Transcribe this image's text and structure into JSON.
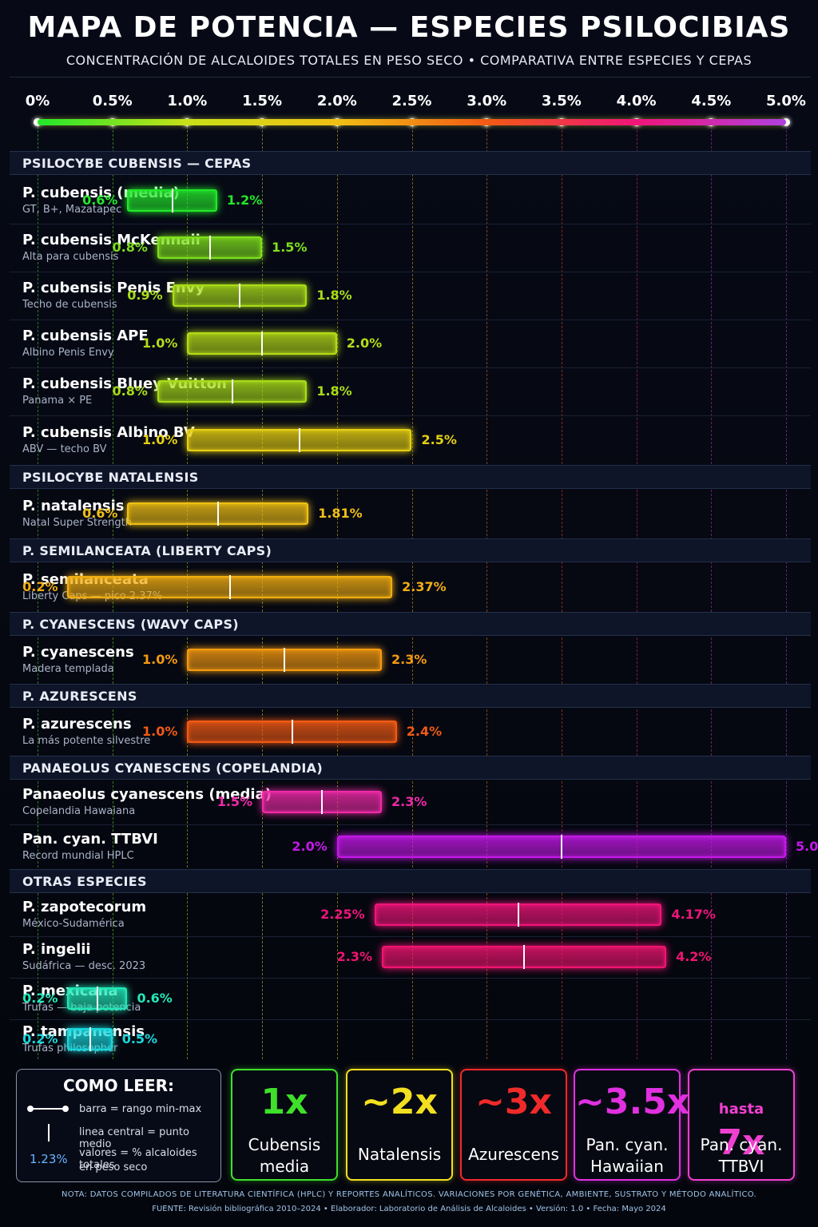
{
  "title": "MAPA DE POTENCIA — ESPECIES PSILOCIBIAS",
  "subtitle": "CONCENTRACIÓN DE ALCALOIDES TOTALES EN PESO SECO  •  COMPARATIVA ENTRE ESPECIES Y CEPAS",
  "chart_data": {
    "type": "range-bar",
    "axis": {
      "min": 0,
      "max": 5,
      "unit": "%",
      "ticks": [
        {
          "value": 0,
          "label": "0%"
        },
        {
          "value": 0.5,
          "label": "0.5%"
        },
        {
          "value": 1.0,
          "label": "1.0%"
        },
        {
          "value": 1.5,
          "label": "1.5%"
        },
        {
          "value": 2.0,
          "label": "2.0%"
        },
        {
          "value": 2.5,
          "label": "2.5%"
        },
        {
          "value": 3.0,
          "label": "3.0%"
        },
        {
          "value": 3.5,
          "label": "3.5%"
        },
        {
          "value": 4.0,
          "label": "4.0%"
        },
        {
          "value": 4.5,
          "label": "4.5%"
        },
        {
          "value": 5.0,
          "label": "5.0%"
        }
      ]
    },
    "sections": [
      {
        "title": "PSILOCYBE CUBENSIS — CEPAS",
        "rows": [
          {
            "name": "P. cubensis (media)",
            "sub": "GT, B+, Mazatapec",
            "min": 0.6,
            "max": 1.2,
            "min_label": "0.6%",
            "max_label": "1.2%",
            "color": "#22e82a"
          },
          {
            "name": "P. cubensis McKennaii",
            "sub": "Alta para cubensis",
            "min": 0.8,
            "max": 1.5,
            "min_label": "0.8%",
            "max_label": "1.5%",
            "color": "#7ee01c"
          },
          {
            "name": "P. cubensis Penis Envy",
            "sub": "Techo de cubensis",
            "min": 0.9,
            "max": 1.8,
            "min_label": "0.9%",
            "max_label": "1.8%",
            "color": "#a8dc18"
          },
          {
            "name": "P. cubensis APE",
            "sub": "Albino Penis Envy",
            "min": 1.0,
            "max": 2.0,
            "min_label": "1.0%",
            "max_label": "2.0%",
            "color": "#b5dc16"
          },
          {
            "name": "P. cubensis Bluey Vuitton",
            "sub": "Panama × PE",
            "min": 0.8,
            "max": 1.8,
            "min_label": "0.8%",
            "max_label": "1.8%",
            "color": "#a8dc18"
          },
          {
            "name": "P. cubensis Albino BV",
            "sub": "ABV — techo BV",
            "min": 1.0,
            "max": 2.5,
            "min_label": "1.0%",
            "max_label": "2.5%",
            "color": "#e6d012"
          }
        ]
      },
      {
        "title": "PSILOCYBE NATALENSIS",
        "rows": [
          {
            "name": "P. natalensis",
            "sub": "Natal Super Strength",
            "min": 0.6,
            "max": 1.81,
            "min_label": "0.6%",
            "max_label": "1.81%",
            "color": "#f0c014"
          }
        ]
      },
      {
        "title": "P. SEMILANCEATA (LIBERTY CAPS)",
        "rows": [
          {
            "name": "P. semilanceata",
            "sub": "Liberty Caps — pico 2.37%",
            "min": 0.2,
            "max": 2.37,
            "min_label": "0.2%",
            "max_label": "2.37%",
            "color": "#f2ae10"
          }
        ]
      },
      {
        "title": "P. CYANESCENS (WAVY CAPS)",
        "rows": [
          {
            "name": "P. cyanescens",
            "sub": "Madera templada",
            "min": 1.0,
            "max": 2.3,
            "min_label": "1.0%",
            "max_label": "2.3%",
            "color": "#f59a10"
          }
        ]
      },
      {
        "title": "P. AZURESCENS",
        "rows": [
          {
            "name": "P. azurescens",
            "sub": "La más potente silvestre",
            "min": 1.0,
            "max": 2.4,
            "min_label": "1.0%",
            "max_label": "2.4%",
            "color": "#f25a14"
          }
        ]
      },
      {
        "title": "PANAEOLUS CYANESCENS (COPELANDIA)",
        "rows": [
          {
            "name": "Panaeolus cyanescens (media)",
            "sub": "Copelandia Hawaiana",
            "min": 1.5,
            "max": 2.3,
            "min_label": "1.5%",
            "max_label": "2.3%",
            "color": "#f02aa8"
          },
          {
            "name": "Pan. cyan. TTBVI",
            "sub": "Record mundial HPLC",
            "min": 2.0,
            "max": 5.0,
            "min_label": "2.0%",
            "max_label": "5.0%",
            "color": "#c418e8"
          }
        ]
      },
      {
        "title": "OTRAS ESPECIES",
        "rows": [
          {
            "name": "P. zapotecorum",
            "sub": "México-Sudamérica",
            "min": 2.25,
            "max": 4.17,
            "min_label": "2.25%",
            "max_label": "4.17%",
            "color": "#f0147a"
          },
          {
            "name": "P. ingelii",
            "sub": "Sudáfrica — desc. 2023",
            "min": 2.3,
            "max": 4.2,
            "min_label": "2.3%",
            "max_label": "4.2%",
            "color": "#f01470"
          },
          {
            "name": "P. mexicana",
            "sub": "Trufas — baja potencia",
            "min": 0.2,
            "max": 0.6,
            "min_label": "0.2%",
            "max_label": "0.6%",
            "color": "#22e8b8"
          },
          {
            "name": "P. tampanensis",
            "sub": "Trufas philosopher",
            "min": 0.2,
            "max": 0.5,
            "min_label": "0.2%",
            "max_label": "0.5%",
            "color": "#18d8dc"
          }
        ]
      }
    ]
  },
  "legend": {
    "title": "COMO LEER:",
    "bar_text": "barra = rango min-max",
    "line_text": "linea central = punto medio",
    "sample_value": "1.23%",
    "values_text_1": "valores = % alcaloides totales",
    "values_text_2": "en peso seco"
  },
  "cards": [
    {
      "big": "1x",
      "pre": "",
      "line1": "Cubensis",
      "line2": "media",
      "color": "#3ee02a"
    },
    {
      "big": "~2x",
      "pre": "",
      "line1": "Natalensis",
      "line2": "",
      "color": "#f2e020"
    },
    {
      "big": "~3x",
      "pre": "",
      "line1": "Azurescens",
      "line2": "",
      "color": "#f02a2a"
    },
    {
      "big": "~3.5x",
      "pre": "",
      "line1": "Pan. cyan.",
      "line2": "Hawaiian",
      "color": "#e030e0"
    },
    {
      "big": "7x",
      "pre": "hasta",
      "line1": "Pan. cyan.",
      "line2": "TTBVI",
      "color": "#f040d0"
    }
  ],
  "footer": {
    "note": "NOTA: DATOS COMPILADOS DE LITERATURA CIENTÍFICA (HPLC) Y REPORTES ANALÍTICOS. VARIACIONES POR GENÉTICA, AMBIENTE, SUSTRATO Y MÉTODO ANALÍTICO.",
    "source": "FUENTE: Revisión bibliográfica 2010–2024   •   Elaborador: Laboratorio de Análisis de Alcaloides   •   Versión: 1.0   •   Fecha: Mayo 2024"
  },
  "colors": {
    "scale_gradient": [
      "#22e82a",
      "#c8e018",
      "#f0c014",
      "#f25a14",
      "#f0147a",
      "#b040e0"
    ],
    "background": "#05070f"
  }
}
